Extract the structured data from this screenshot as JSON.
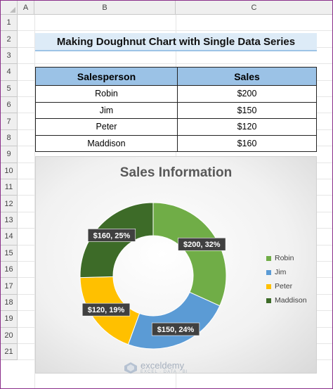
{
  "columns": [
    "A",
    "B",
    "C"
  ],
  "rows": [
    "1",
    "2",
    "3",
    "4",
    "5",
    "6",
    "7",
    "8",
    "9",
    "10",
    "11",
    "12",
    "13",
    "14",
    "15",
    "16",
    "17",
    "18",
    "19",
    "20",
    "21"
  ],
  "sheet_title": "Making Doughnut Chart with Single Data Series",
  "table": {
    "headers": [
      "Salesperson",
      "Sales"
    ],
    "rows": [
      [
        "Robin",
        "$200"
      ],
      [
        "Jim",
        "$150"
      ],
      [
        "Peter",
        "$120"
      ],
      [
        "Maddison",
        "$160"
      ]
    ]
  },
  "chart_data": {
    "type": "doughnut",
    "title": "Sales Information",
    "categories": [
      "Robin",
      "Jim",
      "Peter",
      "Maddison"
    ],
    "values": [
      200,
      150,
      120,
      160
    ],
    "data_labels": [
      "$200, 32%",
      "$150, 24%",
      "$120, 19%",
      "$160, 25%"
    ],
    "colors": [
      "#70ad47",
      "#5b9bd5",
      "#ffc000",
      "#3d6b28"
    ],
    "legend_position": "right"
  },
  "watermark": {
    "name": "exceldemy",
    "tagline": "EXCEL · DATA · BI"
  },
  "colors": {
    "header_bg": "#9bc2e6",
    "title_bg": "#ddebf7",
    "frame": "#8a2f8a"
  }
}
